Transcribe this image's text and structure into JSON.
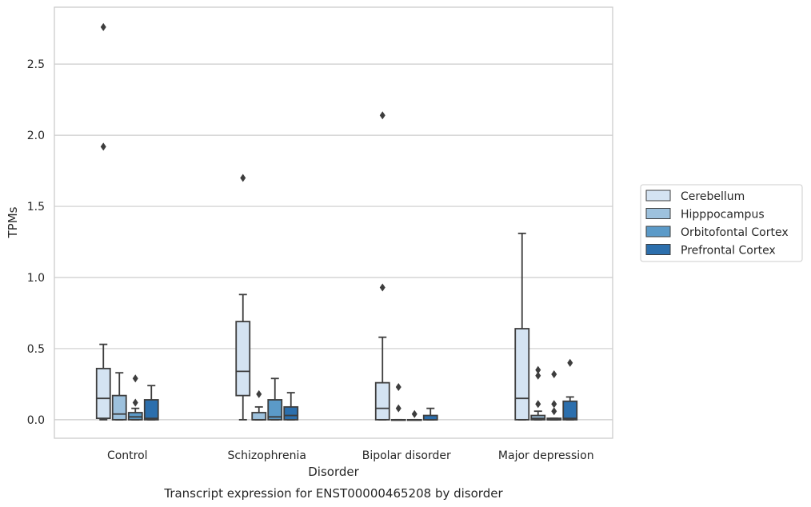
{
  "chart_data": {
    "type": "boxplot",
    "caption": "Transcript expression for ENST00000465208 by disorder",
    "xlabel": "Disorder",
    "ylabel": "TPMs",
    "ylim": [
      -0.13,
      2.9
    ],
    "yticks": [
      0.0,
      0.5,
      1.0,
      1.5,
      2.0,
      2.5
    ],
    "ytick_labels": [
      "0.0",
      "0.5",
      "1.0",
      "1.5",
      "2.0",
      "2.5"
    ],
    "grid": "horizontal",
    "legend_position": "right",
    "categories": [
      "Control",
      "Schizophrenia",
      "Bipolar disorder",
      "Major depression"
    ],
    "series": [
      {
        "name": "Cerebellum",
        "color": "#d4e3f2",
        "boxes": [
          {
            "whislo": 0.0,
            "q1": 0.01,
            "med": 0.15,
            "q3": 0.36,
            "whishi": 0.53,
            "fliers": [
              1.92,
              2.76
            ]
          },
          {
            "whislo": 0.0,
            "q1": 0.17,
            "med": 0.34,
            "q3": 0.69,
            "whishi": 0.88,
            "fliers": [
              1.7
            ]
          },
          {
            "whislo": 0.0,
            "q1": 0.0,
            "med": 0.08,
            "q3": 0.26,
            "whishi": 0.58,
            "fliers": [
              0.93,
              2.14
            ]
          },
          {
            "whislo": 0.0,
            "q1": 0.0,
            "med": 0.15,
            "q3": 0.64,
            "whishi": 1.31,
            "fliers": []
          }
        ]
      },
      {
        "name": "Hipppocampus",
        "color": "#9dc1dd",
        "boxes": [
          {
            "whislo": 0.0,
            "q1": 0.0,
            "med": 0.04,
            "q3": 0.17,
            "whishi": 0.33,
            "fliers": []
          },
          {
            "whislo": 0.0,
            "q1": 0.0,
            "med": 0.0,
            "q3": 0.05,
            "whishi": 0.09,
            "fliers": [
              0.18
            ]
          },
          {
            "whislo": 0.0,
            "q1": 0.0,
            "med": 0.0,
            "q3": 0.0,
            "whishi": 0.0,
            "fliers": [
              0.08,
              0.23
            ]
          },
          {
            "whislo": 0.0,
            "q1": 0.0,
            "med": 0.01,
            "q3": 0.03,
            "whishi": 0.06,
            "fliers": [
              0.11,
              0.31,
              0.35
            ]
          }
        ]
      },
      {
        "name": "Orbitofontal Cortex",
        "color": "#5b9ac8",
        "boxes": [
          {
            "whislo": 0.0,
            "q1": 0.0,
            "med": 0.02,
            "q3": 0.05,
            "whishi": 0.08,
            "fliers": [
              0.12,
              0.29
            ]
          },
          {
            "whislo": 0.0,
            "q1": 0.0,
            "med": 0.02,
            "q3": 0.14,
            "whishi": 0.29,
            "fliers": []
          },
          {
            "whislo": 0.0,
            "q1": 0.0,
            "med": 0.0,
            "q3": 0.0,
            "whishi": 0.0,
            "fliers": [
              0.04
            ]
          },
          {
            "whislo": 0.0,
            "q1": 0.0,
            "med": 0.0,
            "q3": 0.01,
            "whishi": 0.01,
            "fliers": [
              0.06,
              0.11,
              0.32
            ]
          }
        ]
      },
      {
        "name": "Prefrontal Cortex",
        "color": "#2c6fad",
        "boxes": [
          {
            "whislo": 0.0,
            "q1": 0.0,
            "med": 0.01,
            "q3": 0.14,
            "whishi": 0.24,
            "fliers": []
          },
          {
            "whislo": 0.0,
            "q1": 0.0,
            "med": 0.03,
            "q3": 0.09,
            "whishi": 0.19,
            "fliers": []
          },
          {
            "whislo": 0.0,
            "q1": 0.0,
            "med": 0.0,
            "q3": 0.03,
            "whishi": 0.08,
            "fliers": []
          },
          {
            "whislo": 0.0,
            "q1": 0.0,
            "med": 0.01,
            "q3": 0.13,
            "whishi": 0.16,
            "fliers": [
              0.4
            ]
          }
        ]
      }
    ]
  }
}
